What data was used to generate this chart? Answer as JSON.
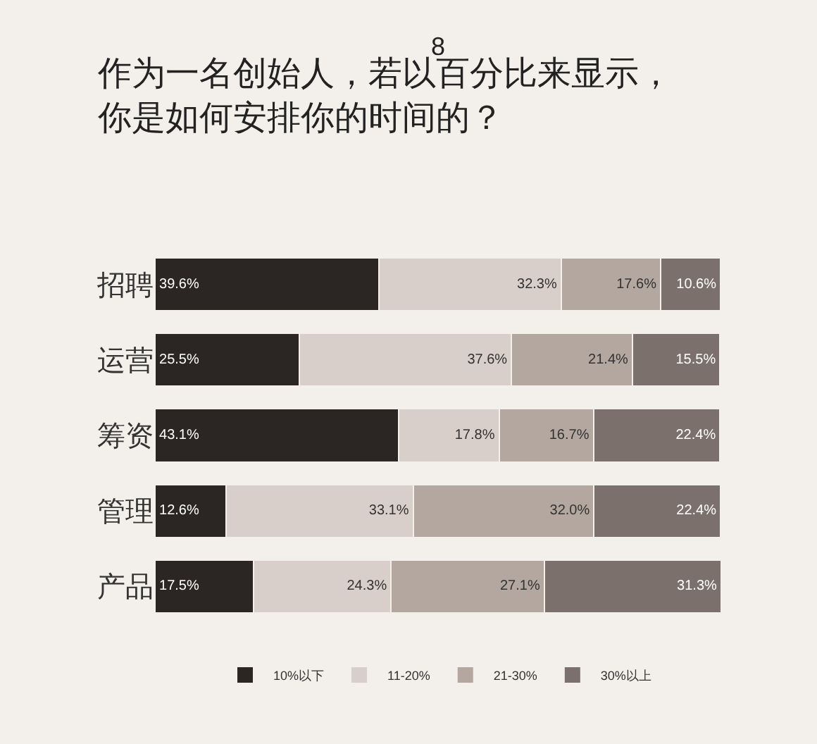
{
  "chart_data": {
    "type": "bar",
    "orientation": "horizontal",
    "stacked": true,
    "title": "作为一名创始人，若以百分比来显示，你是如何安排你的时间的？",
    "annotations": [
      "8"
    ],
    "categories": [
      "招聘",
      "运营",
      "筹资",
      "管理",
      "产品"
    ],
    "xlim": [
      0,
      100.2
    ],
    "tick_labels": "y",
    "grid": false,
    "legend": "bottom",
    "series": [
      {
        "name": "10%以下",
        "color": "#2b2624",
        "values": [
          39.6,
          25.5,
          43.1,
          12.6,
          17.5
        ],
        "value_labels": [
          "39.6%",
          "25.5%",
          "43.1%",
          "12.6%",
          "17.5%"
        ]
      },
      {
        "name": "11-20%",
        "color": "#d8cfca",
        "values": [
          32.3,
          37.6,
          17.8,
          33.1,
          24.3
        ],
        "value_labels": [
          "32.3%",
          "37.6%",
          "17.8%",
          "33.1%",
          "24.3%"
        ]
      },
      {
        "name": "21-30%",
        "color": "#b4a79f",
        "values": [
          17.6,
          21.4,
          16.7,
          32.0,
          27.1
        ],
        "value_labels": [
          "17.6%",
          "21.4%",
          "16.7%",
          "32.0%",
          "27.1%"
        ]
      },
      {
        "name": "30%以上",
        "color": "#7b706b",
        "values": [
          10.6,
          15.5,
          22.4,
          22.4,
          31.3
        ],
        "value_labels": [
          "10.6%",
          "15.5%",
          "22.4%",
          "22.4%",
          "31.3%"
        ]
      }
    ]
  }
}
